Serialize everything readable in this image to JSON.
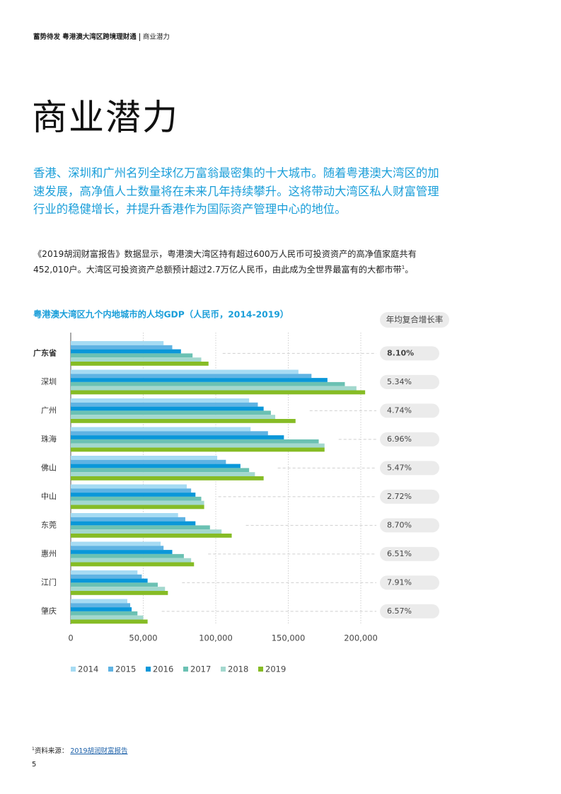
{
  "header": {
    "report": "蓄势待发  粤港澳大湾区跨境理财通",
    "section": "商业潜力"
  },
  "title": "商业潜力",
  "intro": "香港、深圳和广州名列全球亿万富翁最密集的十大城市。随着粤港澳大湾区的加速发展，高净值人士数量将在未来几年持续攀升。这将带动大湾区私人财富管理行业的稳健增长，并提升香港作为国际资产管理中心的地位。",
  "body": {
    "text": "《2019胡润财富报告》数据显示，粤港澳大湾区持有超过600万人民币可投资资产的高净值家庭共有452,010户。大湾区可投资资产总额预计超过2.7万亿人民币，由此成为全世界最富有的大都市带",
    "note": "1",
    "end": "。"
  },
  "chart_data": {
    "type": "bar",
    "orientation": "horizontal",
    "title": "粤港澳大湾区九个内地城市的人均GDP（人民币，2014-2019）",
    "categories": [
      "广东省",
      "深圳",
      "广州",
      "珠海",
      "佛山",
      "中山",
      "东莞",
      "惠州",
      "江门",
      "肇庆"
    ],
    "series": [
      {
        "name": "2014",
        "color": "#a6dbf3",
        "values": [
          64000,
          157000,
          123000,
          124000,
          101000,
          80000,
          74000,
          62000,
          46000,
          39000
        ]
      },
      {
        "name": "2015",
        "color": "#5fb3e3",
        "values": [
          70000,
          166000,
          129000,
          136000,
          107000,
          83000,
          79000,
          64000,
          49000,
          41000
        ]
      },
      {
        "name": "2016",
        "color": "#0a97d9",
        "values": [
          76000,
          177000,
          133000,
          147000,
          117000,
          86000,
          86000,
          70000,
          53000,
          42000
        ]
      },
      {
        "name": "2017",
        "color": "#6bc1b3",
        "values": [
          84000,
          189000,
          138000,
          171000,
          123000,
          90000,
          96000,
          78000,
          60000,
          46000
        ]
      },
      {
        "name": "2018",
        "color": "#a3d8ce",
        "values": [
          90000,
          197000,
          141000,
          175000,
          127000,
          92000,
          104000,
          83000,
          65000,
          50000
        ]
      },
      {
        "name": "2019",
        "color": "#86bc25",
        "values": [
          95000,
          203000,
          155000,
          175000,
          133000,
          92000,
          111000,
          85000,
          67000,
          53000
        ]
      }
    ],
    "xlim": [
      0,
      200000
    ],
    "xticks": [
      0,
      {
        "value": 50000,
        "label": "50,000"
      },
      {
        "value": 100000,
        "label": "100,000"
      },
      {
        "value": 150000,
        "label": "150,000"
      },
      {
        "value": 200000,
        "label": "200,000"
      }
    ],
    "grid": true,
    "cagr": {
      "title": "年均复合增长率",
      "values": [
        8.1,
        5.34,
        4.74,
        6.96,
        5.47,
        2.72,
        8.7,
        6.51,
        7.91,
        6.57
      ],
      "value_labels": [
        "8.10%",
        "5.34%",
        "4.74%",
        "6.96%",
        "5.47%",
        "2.72%",
        "8.70%",
        "6.51%",
        "7.91%",
        "6.57%"
      ]
    }
  },
  "footnote": {
    "marker": "1",
    "label": "资料来源：",
    "link": "2019胡润财富报告"
  },
  "page_number": "5"
}
